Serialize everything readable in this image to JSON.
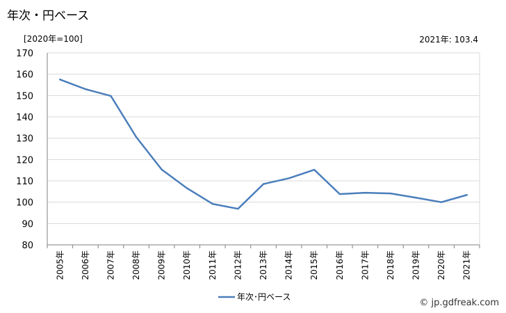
{
  "title": "年次・円ベース",
  "unit_label": "[2020年=100]",
  "latest_value": "2021年: 103.4",
  "credit": "© jp.gdfreak.com",
  "chart_data": {
    "type": "line",
    "categories": [
      "2005年",
      "2006年",
      "2007年",
      "2008年",
      "2009年",
      "2010年",
      "2011年",
      "2012年",
      "2013年",
      "2014年",
      "2015年",
      "2016年",
      "2017年",
      "2018年",
      "2019年",
      "2020年",
      "2021年"
    ],
    "series": [
      {
        "name": "年次･円ベース",
        "color": "#4a7ebb",
        "values": [
          157.5,
          153.0,
          149.8,
          130.5,
          115.3,
          106.5,
          99.2,
          96.9,
          108.5,
          111.2,
          115.2,
          103.8,
          104.4,
          104.1,
          102.1,
          100.0,
          103.4
        ]
      }
    ],
    "ylim": [
      80,
      170
    ],
    "yticks": [
      80,
      90,
      100,
      110,
      120,
      130,
      140,
      150,
      160,
      170
    ],
    "grid": true,
    "legend_position": "bottom"
  }
}
